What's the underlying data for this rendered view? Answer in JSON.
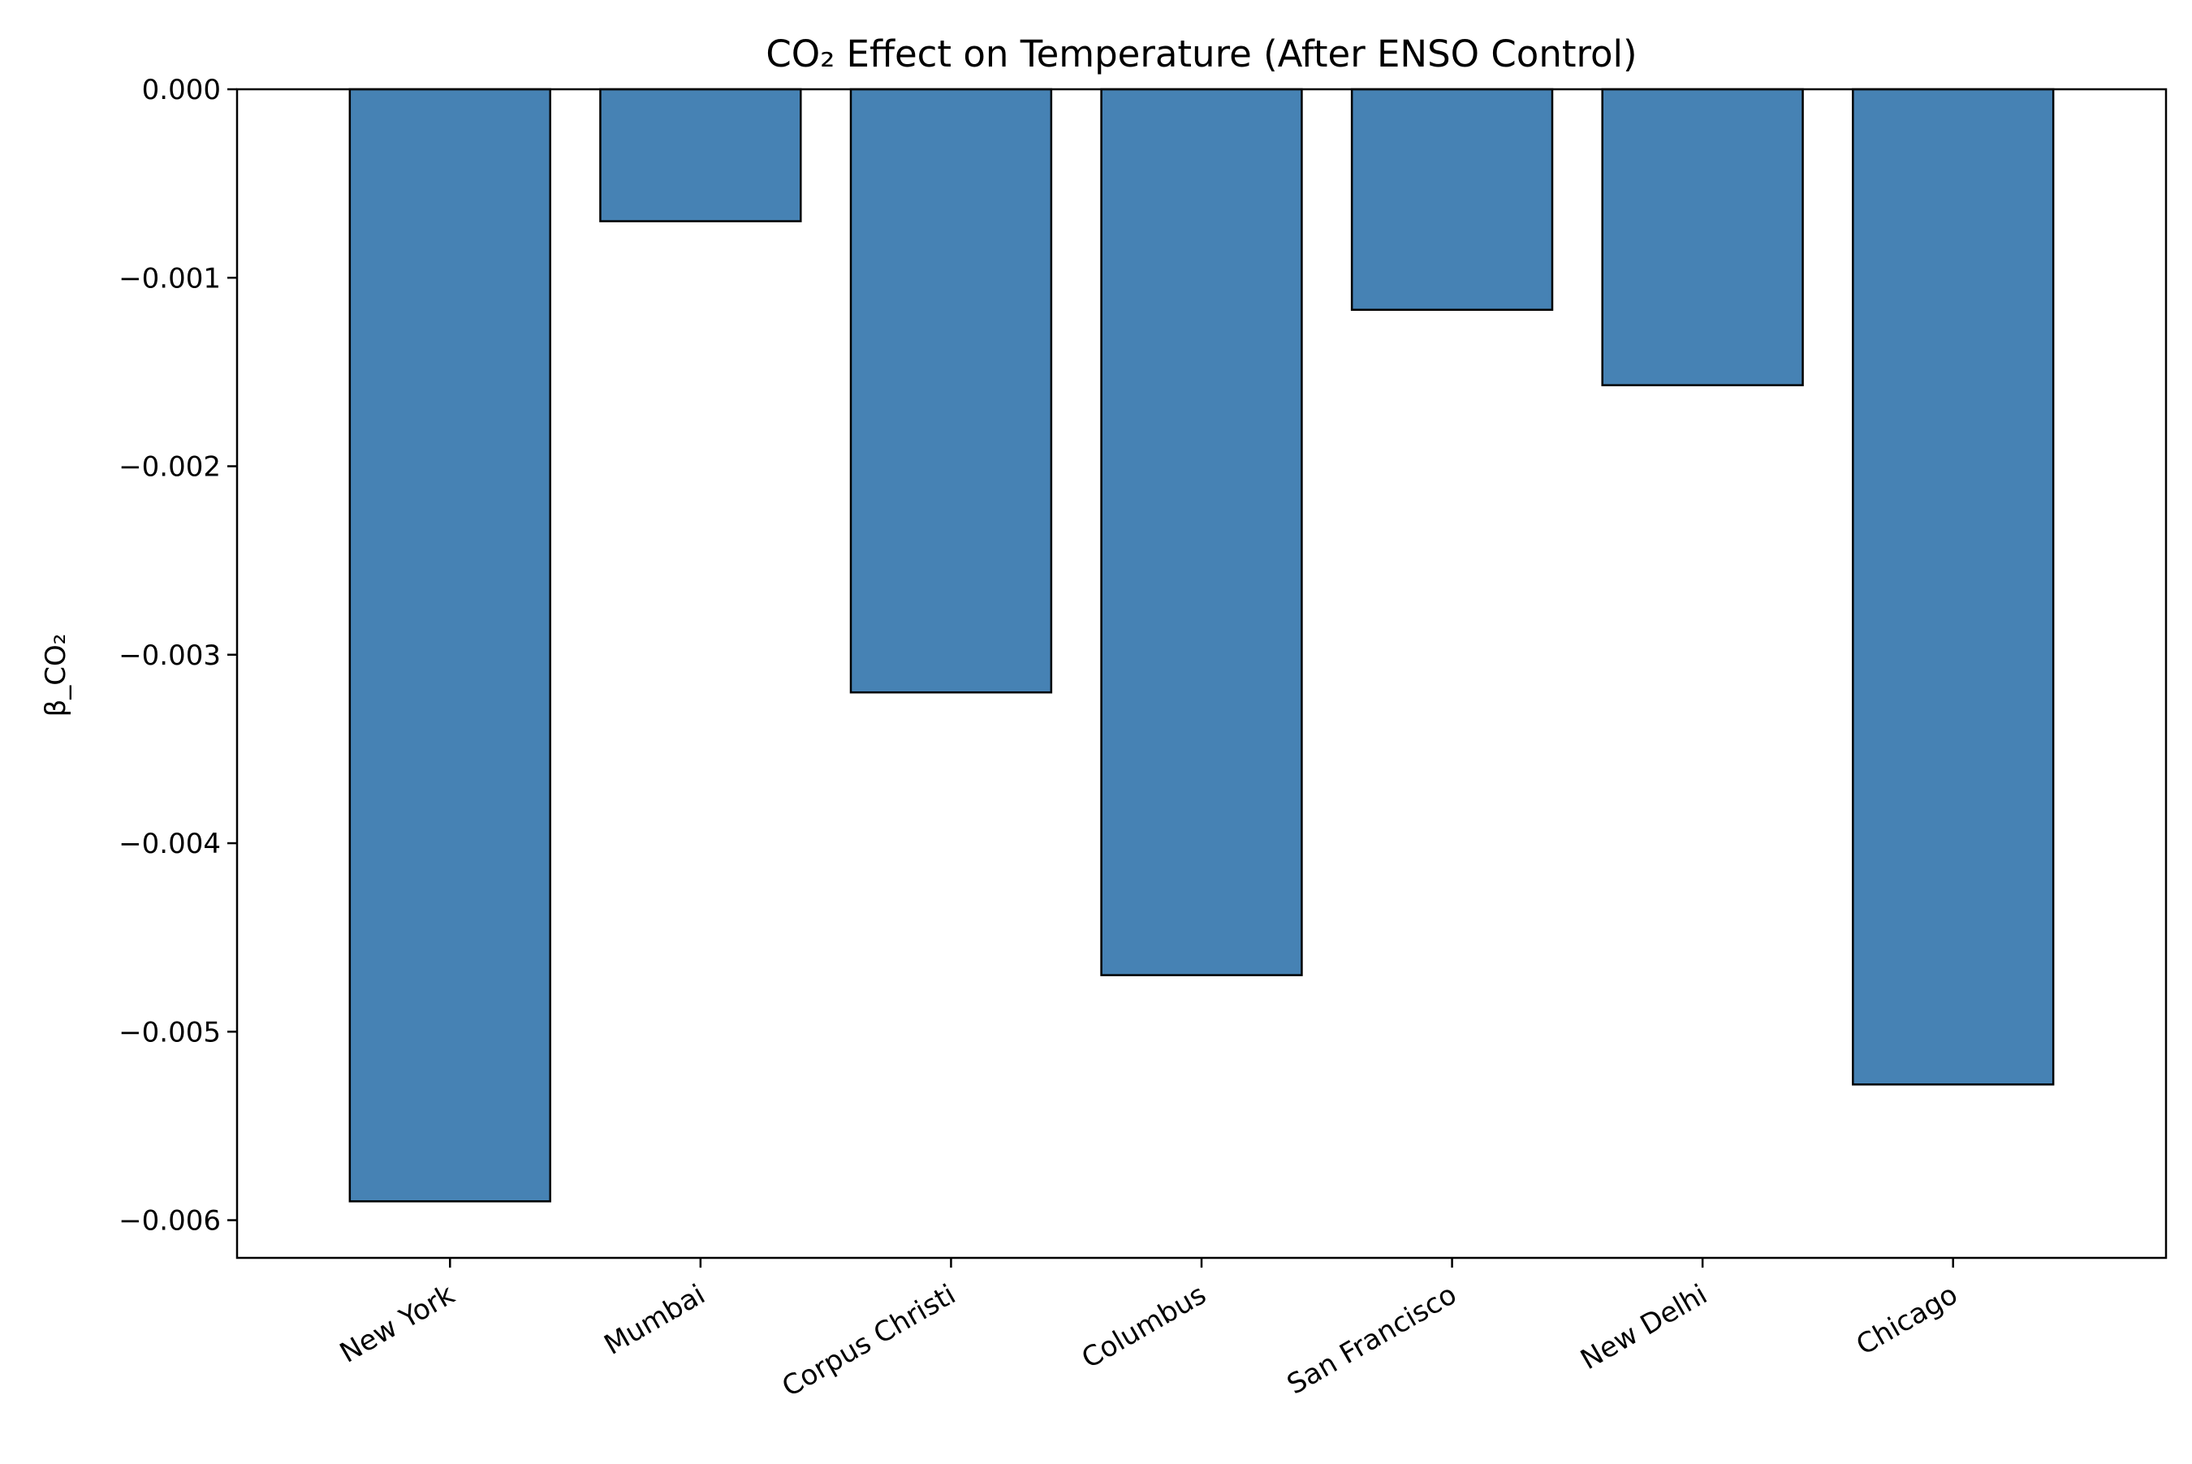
{
  "chart_data": {
    "type": "bar",
    "title": "CO₂ Effect on Temperature (After ENSO Control)",
    "xlabel": "",
    "ylabel": "β_CO₂",
    "categories": [
      "New York",
      "Mumbai",
      "Corpus Christi",
      "Columbus",
      "San Francisco",
      "New Delhi",
      "Chicago"
    ],
    "values": [
      -0.0059,
      -0.0007,
      -0.0032,
      -0.0047,
      -0.00117,
      -0.00157,
      -0.00528
    ],
    "ylim": [
      -0.0062,
      0.0
    ],
    "yticks": [
      0.0,
      -0.001,
      -0.002,
      -0.003,
      -0.004,
      -0.005,
      -0.006
    ],
    "ytick_labels": [
      "0.000",
      "−0.001",
      "−0.002",
      "−0.003",
      "−0.004",
      "−0.005",
      "−0.006"
    ],
    "grid": false,
    "colors": {
      "bar_fill": "#4682b4",
      "bar_edge": "#000000",
      "axis": "#000000"
    }
  }
}
